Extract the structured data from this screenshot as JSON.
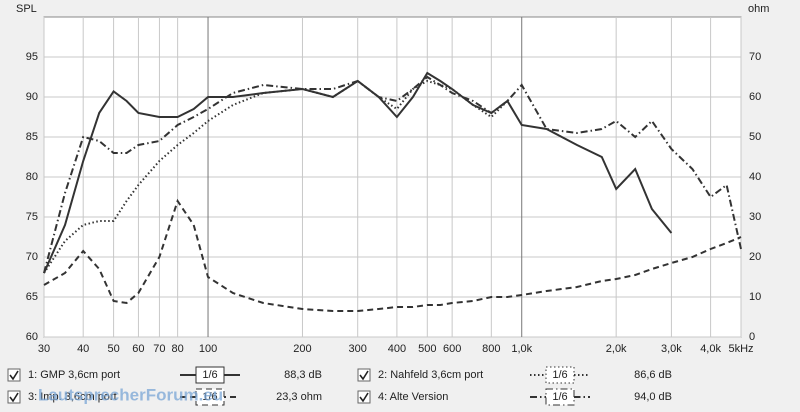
{
  "chart_data": {
    "type": "line",
    "ylabel": "SPL",
    "y2label": "ohm",
    "xscale": "log",
    "xlim": [
      30,
      5000
    ],
    "xticks": [
      30,
      40,
      50,
      60,
      70,
      80,
      100,
      200,
      300,
      400,
      500,
      600,
      800,
      {
        "value": 1000,
        "label": "1,0k"
      },
      {
        "value": 2000,
        "label": "2,0k"
      },
      {
        "value": 3000,
        "label": "3,0k"
      },
      {
        "value": 4000,
        "label": "4,0k"
      },
      {
        "value": 5000,
        "label": "5kHz"
      }
    ],
    "ylim": [
      60,
      100
    ],
    "yticks": [
      60,
      65,
      70,
      75,
      80,
      85,
      90,
      95
    ],
    "y2lim": [
      0,
      80
    ],
    "y2ticks": [
      0,
      10,
      20,
      30,
      40,
      50,
      60,
      70
    ],
    "grid": true,
    "smoothing": "1/6",
    "watermark": "LautsprecherForum.eu",
    "x": [
      30,
      35,
      40,
      45,
      50,
      55,
      60,
      70,
      80,
      90,
      100,
      120,
      150,
      200,
      250,
      300,
      350,
      400,
      450,
      500,
      550,
      600,
      700,
      800,
      900,
      1000,
      1200,
      1500,
      1800,
      2000,
      2300,
      2600,
      3000,
      3500,
      4000,
      4500,
      5000
    ],
    "series": [
      {
        "name": "1: GMP 3,6cm port",
        "color": "#333333",
        "dash": "solid",
        "legend_value": "88,3 dB",
        "values": [
          68,
          74,
          82,
          88,
          90.7,
          89.5,
          88,
          87.5,
          87.5,
          88.5,
          90,
          90,
          90.5,
          91,
          90,
          92,
          90,
          87.5,
          90,
          93,
          92,
          91,
          89,
          88,
          89.5,
          86.5,
          86,
          84,
          82.5,
          78.5,
          81,
          76,
          73,
          null,
          null,
          null,
          null
        ]
      },
      {
        "name": "2: Nahfeld 3,6cm port",
        "color": "#333333",
        "dash": "dotted",
        "legend_value": "86,6 dB",
        "values": [
          68,
          72,
          74,
          74.5,
          74.5,
          77,
          79,
          82,
          84,
          85.5,
          87,
          89,
          90.5,
          91,
          90,
          92,
          90,
          88.5,
          91,
          92,
          91.5,
          91,
          89,
          87.5,
          89.5,
          null,
          null,
          null,
          null,
          null,
          null,
          null,
          null,
          null,
          null,
          null,
          null
        ]
      },
      {
        "name": "3: Imp. 3,6cm port",
        "color": "#333333",
        "dash": "dashed",
        "legend_value": "23,3 ohm",
        "axis": "y2",
        "values": [
          13,
          16,
          21.5,
          17,
          9,
          8.5,
          11,
          20,
          34,
          28,
          15,
          11,
          8.5,
          7,
          6.5,
          6.5,
          7,
          7.5,
          7.5,
          8,
          8,
          8.5,
          9,
          10,
          10,
          10.5,
          11.5,
          12.5,
          14,
          14.5,
          15.5,
          17,
          18.5,
          20,
          22,
          23.5,
          25
        ]
      },
      {
        "name": "4: Alte Version",
        "color": "#333333",
        "dash": "dashdot",
        "legend_value": "94,0 dB",
        "values": [
          68,
          78,
          85,
          84.5,
          83,
          83,
          84,
          84.5,
          86.5,
          87.5,
          88.5,
          90.5,
          91.5,
          91,
          91,
          92,
          90,
          89.5,
          91,
          92.5,
          91.5,
          90.5,
          89.5,
          88,
          89.5,
          91.5,
          86,
          85.5,
          86,
          87,
          85,
          87,
          83.5,
          81,
          77.5,
          79,
          71
        ]
      }
    ]
  }
}
